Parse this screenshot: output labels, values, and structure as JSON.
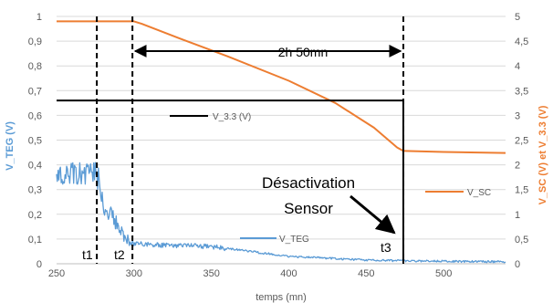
{
  "chart_data": {
    "type": "line",
    "xlabel": "temps (mn)",
    "ylabel_left": "V_TEG (V)",
    "ylabel_right": "V_SC (V) et V_3.3 (V)",
    "xlim": [
      250,
      540
    ],
    "xticks": [
      250,
      300,
      350,
      400,
      450,
      500
    ],
    "ylim_left": [
      0,
      1
    ],
    "yticks_left": [
      "0",
      "0,1",
      "0,2",
      "0,3",
      "0,4",
      "0,5",
      "0,6",
      "0,7",
      "0,8",
      "0,9",
      "1"
    ],
    "ylim_right": [
      0,
      5
    ],
    "yticks_right": [
      "0",
      "0,5",
      "1",
      "1,5",
      "2",
      "2,5",
      "3",
      "3,5",
      "4",
      "4,5",
      "5"
    ],
    "grid": "horizontal",
    "colors": {
      "V_TEG": "#5b9bd5",
      "V_SC": "#ed7d31",
      "V_3.3": "#000000"
    },
    "series": [
      {
        "name": "V_SC",
        "axis": "right",
        "x": [
          250,
          300,
          305,
          330,
          360,
          400,
          430,
          455,
          470,
          474,
          475,
          500,
          540
        ],
        "y": [
          4.9,
          4.9,
          4.85,
          4.55,
          4.2,
          3.7,
          3.25,
          2.75,
          2.35,
          2.28,
          2.28,
          2.26,
          2.24
        ]
      },
      {
        "name": "V_TEG",
        "axis": "left",
        "x": [
          250,
          275,
          280,
          290,
          297,
          300,
          320,
          350,
          400,
          450,
          474,
          500,
          540
        ],
        "y": [
          0.41,
          0.41,
          0.25,
          0.14,
          0.09,
          0.08,
          0.075,
          0.07,
          0.03,
          0.015,
          0.012,
          0.01,
          0.008
        ]
      },
      {
        "name": "V_3.3 (V)",
        "axis": "right",
        "x": [
          250,
          474,
          474
        ],
        "y": [
          3.3,
          3.3,
          0
        ]
      }
    ],
    "markers": [
      {
        "label": "t1",
        "x": 276
      },
      {
        "label": "t2",
        "x": 299
      },
      {
        "label": "t3",
        "x": 474
      }
    ],
    "annotations": {
      "duration": "2h 50mn",
      "event_line1": "Désactivation",
      "event_line2": "Sensor"
    }
  }
}
